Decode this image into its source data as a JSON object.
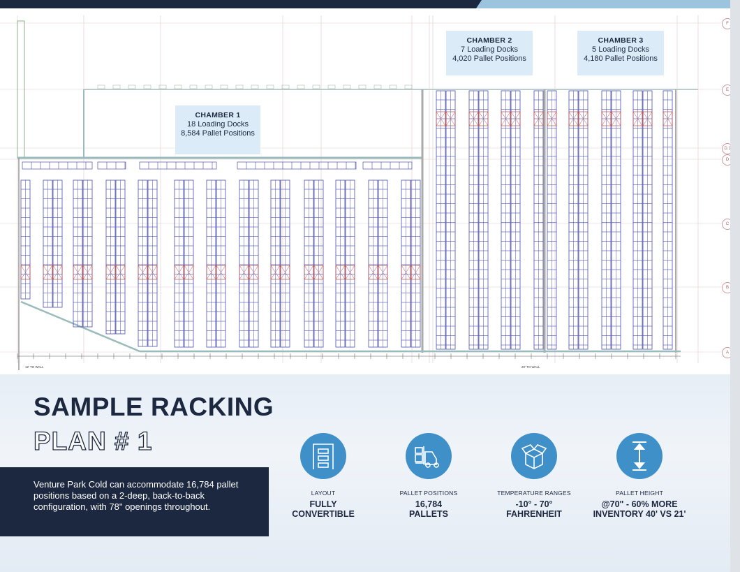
{
  "chambers": [
    {
      "title": "CHAMBER 1",
      "docks": "18 Loading Docks",
      "pallets": "8,584 Pallet Positions"
    },
    {
      "title": "CHAMBER 2",
      "docks": "7 Loading Docks",
      "pallets": "4,020 Pallet Positions"
    },
    {
      "title": "CHAMBER 3",
      "docks": "5 Loading Docks",
      "pallets": "4,180 Pallet Positions"
    }
  ],
  "grid_labels": [
    "F",
    "E",
    "D.1",
    "D",
    "C",
    "B",
    "A"
  ],
  "wall_notes": [
    "12' TO WALL",
    "20' TO WALL"
  ],
  "title": {
    "line1": "SAMPLE RACKING",
    "line2": "PLAN # 1"
  },
  "description": "Venture Park Cold can accommodate 16,784 pallet positions based on a 2-deep, back-to-back configuration, with 78\" openings throughout.",
  "stats": [
    {
      "icon": "door-icon",
      "label": "LAYOUT",
      "value1": "FULLY",
      "value2": "CONVERTIBLE"
    },
    {
      "icon": "forklift-icon",
      "label": "PALLET POSITIONS",
      "value1": "16,784",
      "value2": "PALLETS"
    },
    {
      "icon": "box-icon",
      "label": "TEMPERATURE RANGES",
      "value1": "-10° - 70°",
      "value2": "FAHRENHEIT"
    },
    {
      "icon": "height-arrow-icon",
      "label": "PALLET HEIGHT",
      "value1": "@70\" - 60% MORE",
      "value2": "INVENTORY 40' VS 21'"
    }
  ],
  "colors": {
    "navy": "#1c2740",
    "accent": "#3f8fc9",
    "rack": "#4a4fb0",
    "rack_highlight": "#c0504d",
    "chamber_box": "#dcebf8"
  }
}
